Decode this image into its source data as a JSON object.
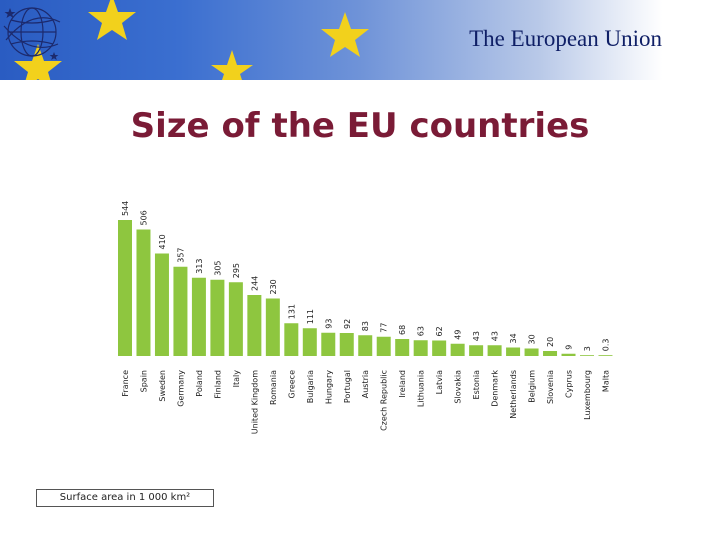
{
  "header": {
    "banner_title": "The European Union"
  },
  "slide": {
    "title": "Size of the EU countries",
    "footnote": "Surface area in 1 000 km²"
  },
  "colors": {
    "bar": "#8ec63f",
    "title": "#7a1b36",
    "banner_text": "#0f1f66",
    "star": "#f2d11c"
  },
  "chart_data": {
    "type": "bar",
    "categories": [
      "France",
      "Spain",
      "Sweden",
      "Germany",
      "Poland",
      "Finland",
      "Italy",
      "United Kingdom",
      "Romania",
      "Greece",
      "Bulgaria",
      "Hungary",
      "Portugal",
      "Austria",
      "Czech Republic",
      "Ireland",
      "Lithuania",
      "Latvia",
      "Slovakia",
      "Estonia",
      "Denmark",
      "Netherlands",
      "Belgium",
      "Slovenia",
      "Cyprus",
      "Luxembourg",
      "Malta"
    ],
    "values": [
      544,
      506,
      410,
      357,
      313,
      305,
      295,
      244,
      230,
      131,
      111,
      93,
      92,
      83,
      77,
      68,
      63,
      62,
      49,
      43,
      43,
      34,
      30,
      20,
      9,
      3,
      0.3
    ],
    "value_labels": [
      "544",
      "506",
      "410",
      "357",
      "313",
      "305",
      "295",
      "244",
      "230",
      "131",
      "111",
      "93",
      "92",
      "83",
      "77",
      "68",
      "63",
      "62",
      "49",
      "43",
      "43",
      "34",
      "30",
      "20",
      "9",
      "3",
      "0.3"
    ],
    "ylim": [
      0,
      544
    ],
    "grid": false,
    "legend": "none"
  }
}
